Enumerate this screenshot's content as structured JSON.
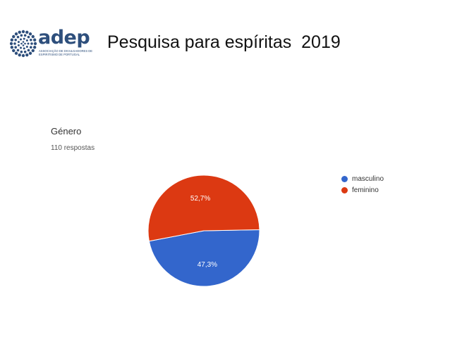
{
  "logo": {
    "word": "adep",
    "subtitle": "Associação de Divulgadores de Espiritismo de Portugal",
    "dot_color": "#2e4f7c",
    "icon": "dotted-circle-logo-icon"
  },
  "slide": {
    "title": "Pesquisa para espíritas  2019"
  },
  "form": {
    "question": "Género",
    "responses": "110 respostas"
  },
  "chart_data": {
    "type": "pie",
    "title": "Género",
    "subtitle": "110 respostas",
    "categories": [
      "masculino",
      "feminino"
    ],
    "values": [
      47.3,
      52.7
    ],
    "value_labels": [
      "47,3%",
      "52,7%"
    ],
    "colors": [
      "#3366cc",
      "#dc3912"
    ],
    "legend_position": "right"
  }
}
